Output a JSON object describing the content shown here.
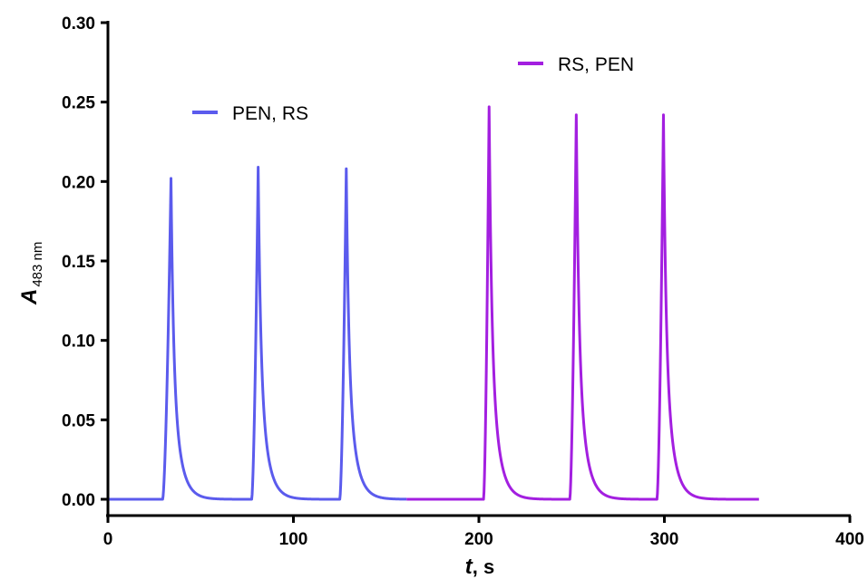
{
  "chart_data": {
    "type": "line",
    "xlabel": {
      "var": "t",
      "unit": ", s"
    },
    "ylabel": {
      "var": "A",
      "sub": "483 nm"
    },
    "xlim": [
      0,
      400
    ],
    "ylim": [
      0,
      0.3
    ],
    "x_ticks": [
      0,
      100,
      200,
      300,
      400
    ],
    "x_tick_labels": [
      "0",
      "100",
      "200",
      "300",
      "400"
    ],
    "y_ticks": [
      0.0,
      0.05,
      0.1,
      0.15,
      0.2,
      0.25,
      0.3
    ],
    "y_tick_labels": [
      "0.00",
      "0.05",
      "0.10",
      "0.15",
      "0.20",
      "0.25",
      "0.30"
    ],
    "grid": false,
    "series": [
      {
        "name": "PEN, RS",
        "color": "#5b5bed",
        "x_range": [
          0,
          161
        ],
        "baseline": 0.0,
        "peaks": [
          {
            "start": 29.5,
            "top": 34,
            "height": 0.202
          },
          {
            "start": 77.5,
            "top": 81,
            "height": 0.209
          },
          {
            "start": 125,
            "top": 128.5,
            "height": 0.208
          }
        ]
      },
      {
        "name": "RS, PEN",
        "color": "#a31fe0",
        "x_range": [
          161,
          351
        ],
        "baseline": 0.0,
        "peaks": [
          {
            "start": 202.5,
            "top": 205.5,
            "height": 0.247
          },
          {
            "start": 249,
            "top": 252.5,
            "height": 0.242
          },
          {
            "start": 296,
            "top": 299.5,
            "height": 0.242
          }
        ]
      }
    ],
    "legend": [
      {
        "label": "PEN, RS",
        "color": "#5b5bed",
        "placement": "upper-left"
      },
      {
        "label": "RS, PEN",
        "color": "#a31fe0",
        "placement": "top-right"
      }
    ]
  }
}
